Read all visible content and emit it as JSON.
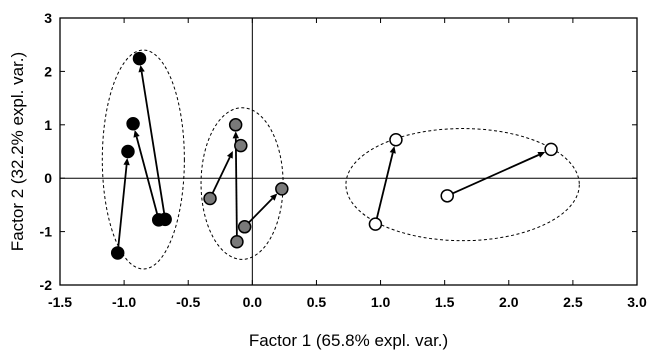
{
  "chart_data": {
    "type": "scatter",
    "xlabel": "Factor 1 (65.8% expl. var.)",
    "ylabel": "Factor 2 (32.2% expl. var.)",
    "xlim": [
      -1.5,
      3.0
    ],
    "ylim": [
      -2,
      3
    ],
    "xticks": [
      -1.5,
      -1.0,
      -0.5,
      0.0,
      0.5,
      1.0,
      1.5,
      2.0,
      2.5,
      3.0
    ],
    "xtick_labels": [
      "-1.5",
      "-1.0",
      "-0.5",
      "0.0",
      "0.5",
      "1.0",
      "1.5",
      "2.0",
      "2.5",
      "3.0"
    ],
    "yticks": [
      -2,
      -1,
      0,
      1,
      2,
      3
    ],
    "ytick_labels": [
      "-2",
      "-1",
      "0",
      "1",
      "2",
      "3"
    ],
    "grid": false,
    "reference_lines": {
      "x": 0,
      "y": 0
    },
    "series": [
      {
        "marker_fill": "#000000",
        "points": [
          {
            "x": -1.05,
            "y": -1.4
          },
          {
            "x": -0.97,
            "y": 0.5
          },
          {
            "x": -0.93,
            "y": 1.02
          },
          {
            "x": -0.88,
            "y": 2.24
          },
          {
            "x": -0.73,
            "y": -0.78
          },
          {
            "x": -0.68,
            "y": -0.77
          }
        ],
        "arrows": [
          {
            "from": [
              -1.05,
              -1.4
            ],
            "to": [
              -0.97,
              0.5
            ]
          },
          {
            "from": [
              -0.73,
              -0.78
            ],
            "to": [
              -0.93,
              1.02
            ]
          },
          {
            "from": [
              -0.68,
              -0.77
            ],
            "to": [
              -0.88,
              2.24
            ]
          }
        ],
        "ellipse": {
          "cx": -0.85,
          "cy": 0.35,
          "rx": 0.32,
          "ry": 2.05
        }
      },
      {
        "marker_fill": "#7a7a7a",
        "points": [
          {
            "x": -0.33,
            "y": -0.38
          },
          {
            "x": -0.13,
            "y": 1.0
          },
          {
            "x": -0.09,
            "y": 0.61
          },
          {
            "x": -0.12,
            "y": -1.19
          },
          {
            "x": -0.06,
            "y": -0.91
          },
          {
            "x": 0.23,
            "y": -0.2
          }
        ],
        "arrows": [
          {
            "from": [
              -0.33,
              -0.38
            ],
            "to": [
              -0.13,
              0.62
            ]
          },
          {
            "from": [
              -0.12,
              -1.19
            ],
            "to": [
              -0.13,
              1.0
            ]
          },
          {
            "from": [
              -0.06,
              -0.91
            ],
            "to": [
              0.23,
              -0.2
            ]
          }
        ],
        "ellipse": {
          "cx": -0.08,
          "cy": -0.1,
          "rx": 0.32,
          "ry": 1.42
        }
      },
      {
        "marker_fill": "#ffffff",
        "points": [
          {
            "x": 0.96,
            "y": -0.86
          },
          {
            "x": 1.12,
            "y": 0.72
          },
          {
            "x": 1.52,
            "y": -0.33
          },
          {
            "x": 2.33,
            "y": 0.54
          }
        ],
        "arrows": [
          {
            "from": [
              0.96,
              -0.86
            ],
            "to": [
              1.12,
              0.72
            ]
          },
          {
            "from": [
              1.52,
              -0.33
            ],
            "to": [
              2.33,
              0.54
            ]
          }
        ],
        "ellipse": {
          "cx": 1.64,
          "cy": -0.12,
          "rx": 0.91,
          "ry": 1.05
        }
      }
    ]
  }
}
